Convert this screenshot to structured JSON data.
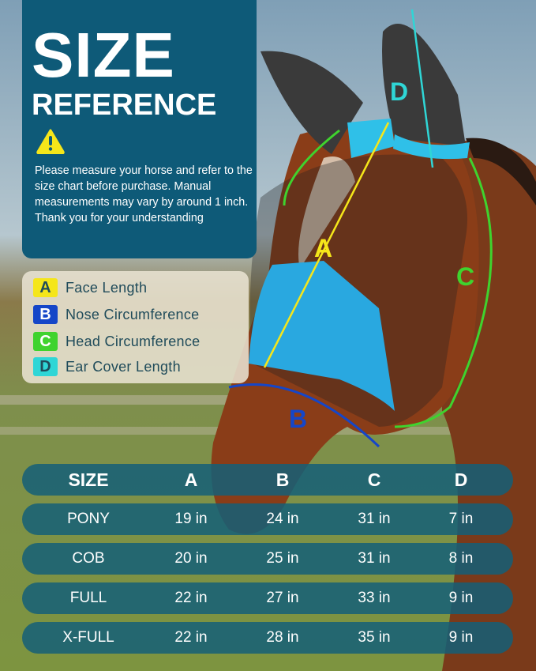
{
  "header": {
    "title_line1": "SIZE",
    "title_line2": "REFERENCE",
    "warning_icon": "warning-triangle-icon",
    "note": "Please measure your horse and refer to the size chart before purchase. Manual measurements may vary by around 1 inch. Thank you for your understanding"
  },
  "legend": [
    {
      "letter": "A",
      "label": "Face Length",
      "color": "#f5e61a"
    },
    {
      "letter": "B",
      "label": "Nose Circumference",
      "color": "#1546c8"
    },
    {
      "letter": "C",
      "label": "Head Circumference",
      "color": "#3fd32e"
    },
    {
      "letter": "D",
      "label": "Ear Cover Length",
      "color": "#2fd6d6"
    }
  ],
  "diagram_labels": {
    "a": "A",
    "b": "B",
    "c": "C",
    "d": "D"
  },
  "table": {
    "headers": [
      "SIZE",
      "A",
      "B",
      "C",
      "D"
    ],
    "rows": [
      [
        "PONY",
        "19 in",
        "24 in",
        "31 in",
        "7 in"
      ],
      [
        "COB",
        "20 in",
        "25 in",
        "31 in",
        "8 in"
      ],
      [
        "FULL",
        "22 in",
        "27 in",
        "33 in",
        "9 in"
      ],
      [
        "X-FULL",
        "22 in",
        "28 in",
        "35 in",
        "9 in"
      ]
    ]
  }
}
